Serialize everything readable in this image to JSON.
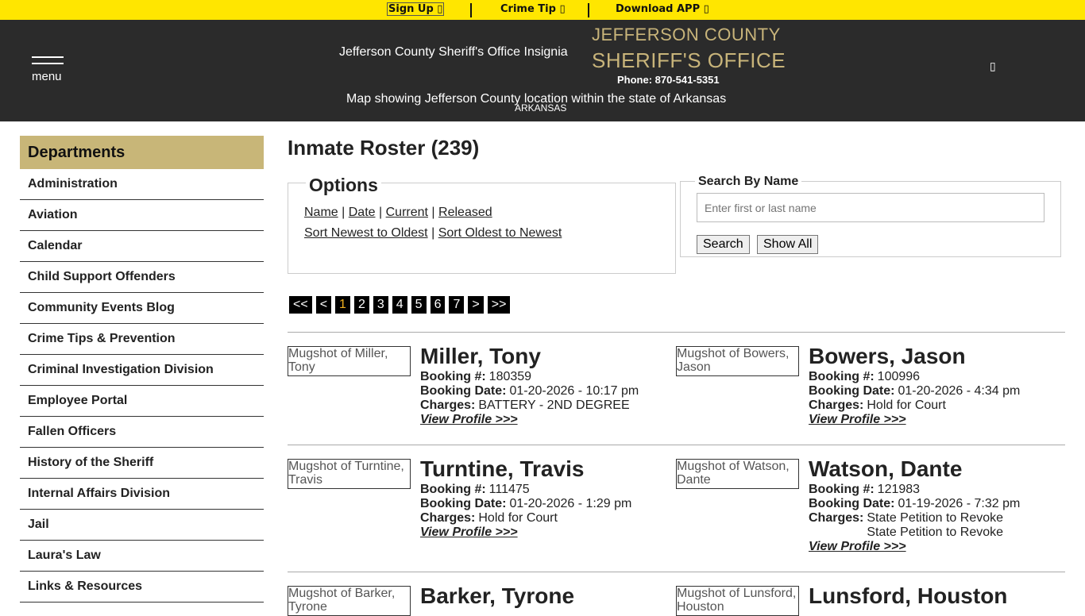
{
  "topbar": {
    "signup": "Sign Up ▯",
    "crimetip": "Crime Tip ▯",
    "download": "Download APP ▯"
  },
  "header": {
    "menu": "menu",
    "insignia_alt": "Jefferson County Sheriff's Office Insignia",
    "title_line1": "JEFFERSON COUNTY",
    "title_line2": "SHERIFF'S OFFICE",
    "phone": "Phone: 870-541-5351",
    "map_alt": "Map showing Jefferson County location within the state of Arkansas",
    "map_label": "ARKANSAS",
    "icon": "▯"
  },
  "colors": {
    "topbar": "#ffe600",
    "header": "#2b2b2b",
    "gold": "#c8b678"
  },
  "sidebar": {
    "title": "Departments",
    "items": [
      "Administration",
      "Aviation",
      "Calendar",
      "Child Support Offenders",
      "Community Events Blog",
      "Crime Tips & Prevention",
      "Criminal Investigation Division",
      "Employee Portal",
      "Fallen Officers",
      "History of the Sheriff",
      "Internal Affairs Division",
      "Jail",
      "Laura's Law",
      "Links & Resources"
    ]
  },
  "main": {
    "title": "Inmate Roster (239)",
    "options": {
      "title": "Options",
      "links1": [
        "Name",
        "Date",
        "Current",
        "Released"
      ],
      "links2": [
        "Sort Newest to Oldest",
        "Sort Oldest to Newest"
      ],
      "sep": "|"
    },
    "search": {
      "title": "Search By Name",
      "placeholder": "Enter first or last name",
      "search": "Search",
      "show_all": "Show All"
    },
    "pager": [
      "<<",
      "<",
      "1",
      "2",
      "3",
      "4",
      "5",
      "6",
      "7",
      ">",
      ">>"
    ],
    "current_page": "1",
    "labels": {
      "booking": "Booking #:",
      "date": "Booking Date:",
      "charges": "Charges:",
      "view": "View Profile >>>"
    },
    "inmates": [
      {
        "mug": "Mugshot of Miller, Tony",
        "name": "Miller, Tony",
        "booking": "180359",
        "date": "01-20-2026 - 10:17 pm",
        "charges": [
          "BATTERY - 2ND DEGREE"
        ]
      },
      {
        "mug": "Mugshot of Bowers, Jason",
        "name": "Bowers, Jason",
        "booking": "100996",
        "date": "01-20-2026 - 4:34 pm",
        "charges": [
          "Hold for Court"
        ]
      },
      {
        "mug": "Mugshot of Turntine, Travis",
        "name": "Turntine, Travis",
        "booking": "111475",
        "date": "01-20-2026 - 1:29 pm",
        "charges": [
          "Hold for Court"
        ]
      },
      {
        "mug": "Mugshot of Watson, Dante",
        "name": "Watson, Dante",
        "booking": "121983",
        "date": "01-19-2026 - 7:32 pm",
        "charges": [
          "State Petition to Revoke",
          "State Petition to Revoke"
        ]
      },
      {
        "mug": "Mugshot of Barker, Tyrone",
        "name": "Barker, Tyrone"
      },
      {
        "mug": "Mugshot of Lunsford, Houston",
        "name": "Lunsford, Houston"
      }
    ]
  }
}
